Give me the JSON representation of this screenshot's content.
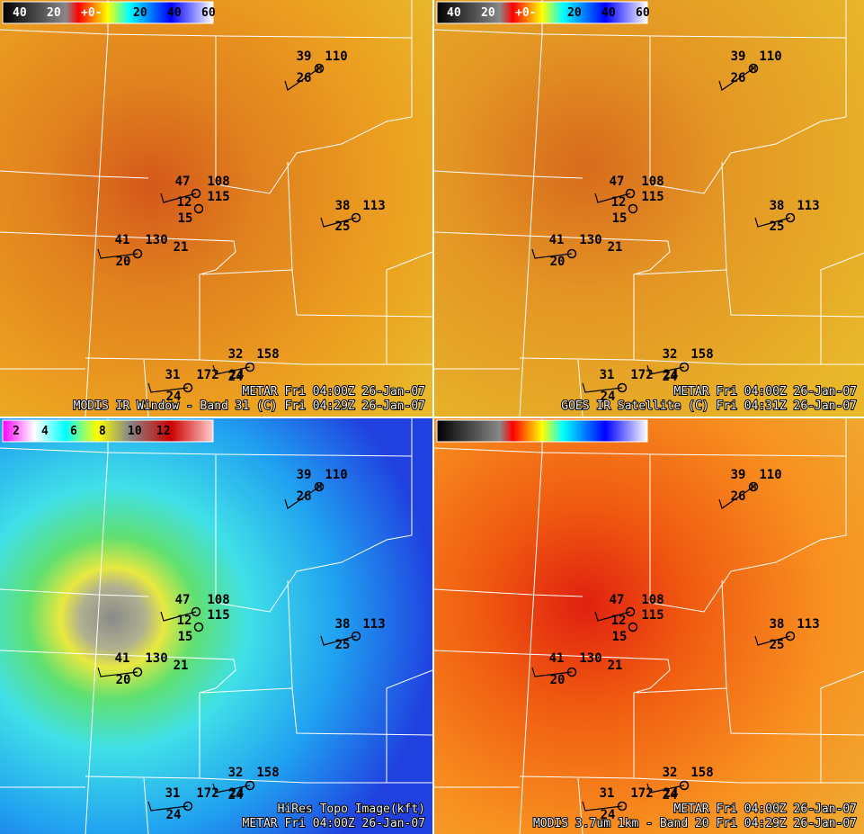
{
  "stations": [
    {
      "temp": "39",
      "pressure": "110",
      "dew": "26",
      "sym": "M"
    },
    {
      "temp": "47",
      "pressure": "108",
      "dew": "12",
      "pressure2": "115",
      "dew2": "15"
    },
    {
      "temp": "38",
      "pressure": "113",
      "dew": "25"
    },
    {
      "temp": "41",
      "pressure": "130",
      "dew": "20",
      "extra": "21"
    },
    {
      "temp": "32",
      "pressure": "158",
      "dew": "24"
    },
    {
      "temp": "31",
      "pressure": "172",
      "dew": "24",
      "extra": "24"
    }
  ],
  "panels": [
    {
      "colorbar": [
        "40",
        "20",
        "+0-",
        "20",
        "40",
        "60"
      ],
      "captions": [
        "METAR  Fri 04:00Z 26-Jan-07",
        "MODIS IR Window - Band 31 (C)  Fri 04:29Z 26-Jan-07"
      ]
    },
    {
      "colorbar": [
        "40",
        "20",
        "+0-",
        "20",
        "40",
        "60"
      ],
      "captions": [
        "METAR  Fri 04:00Z 26-Jan-07",
        "GOES IR Satellite (C)  Fri 04:31Z 26-Jan-07"
      ]
    },
    {
      "colorbar": [
        "2",
        "4",
        "6",
        "8",
        "10",
        "12"
      ],
      "captions": [
        "HiRes Topo Image(kft)",
        "METAR  Fri 04:00Z 26-Jan-07"
      ]
    },
    {
      "colorbar": [],
      "captions": [
        "METAR  Fri 04:00Z 26-Jan-07",
        "MODIS 3.7um 1km - Band 20  Fri 04:29Z 26-Jan-07"
      ]
    }
  ]
}
